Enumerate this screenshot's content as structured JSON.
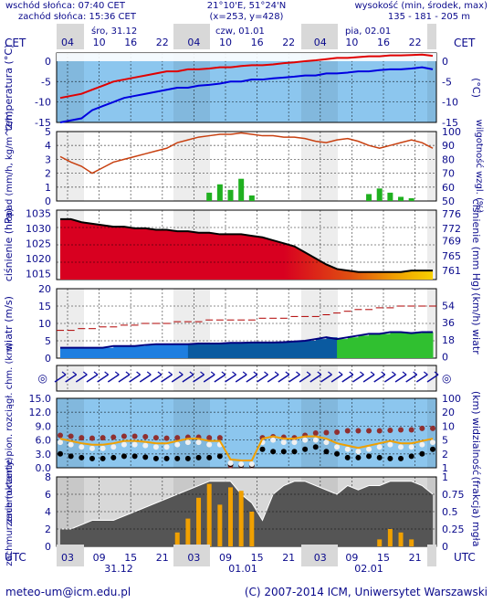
{
  "header": {
    "sunrise": "wschód słońca: 07:40 CET",
    "sunset": "zachód słońca: 15:36 CET",
    "coords": "21°10'E, 51°24'N",
    "grid": "(x=253, y=428)",
    "elev_label": "wysokość (min, środek, max)",
    "elev_values": "135 - 181 - 205 m"
  },
  "top_axis": {
    "tz": "CET",
    "hours": [
      "04",
      "10",
      "16",
      "22",
      "04",
      "10",
      "16",
      "22",
      "04",
      "10",
      "16",
      "22"
    ],
    "days": [
      "śro, 31.12",
      "czw, 01.01",
      "pia, 02.01"
    ]
  },
  "bottom_axis": {
    "tz": "UTC",
    "hours": [
      "03",
      "09",
      "15",
      "21",
      "03",
      "09",
      "15",
      "21",
      "03",
      "09",
      "15",
      "21"
    ],
    "dates": [
      "31.12",
      "01.01",
      "02.01"
    ]
  },
  "footer": {
    "email": "meteo-um@icm.edu.pl",
    "copyright": "(C) 2007-2014 ICM, Uniwersytet Warszawski"
  },
  "colors": {
    "label": "#0a0a8c",
    "panel_bg": "#8cc6ee",
    "night": "#d8d8d8",
    "temp": "#e00000",
    "dew": "#0000e0",
    "rh": "#c84010",
    "pressure": "#000000",
    "fog": "#f0a000"
  },
  "chart_data": [
    {
      "type": "line",
      "panel": "temperature",
      "ylabel_left": "temperatura (°C)",
      "ylabel_right": "(°C)",
      "ylim": [
        -15,
        2
      ],
      "yticks": [
        0,
        -5,
        -10,
        -15
      ],
      "series": [
        {
          "values": [
            -9,
            -8.5,
            -8,
            -7,
            -6,
            -5,
            -4.5,
            -4,
            -3.5,
            -3,
            -2.5,
            -2.5,
            -2,
            -2,
            -1.8,
            -1.5,
            -1.5,
            -1.2,
            -1,
            -1,
            -0.8,
            -0.5,
            -0.3,
            0,
            0.2,
            0.5,
            0.8,
            0.8,
            1,
            1.2,
            1.2,
            1.4,
            1.4,
            1.5,
            1.6,
            1.3
          ]
        },
        {
          "values": [
            -15,
            -14.5,
            -14,
            -12,
            -11,
            -10,
            -9,
            -8.5,
            -8,
            -7.5,
            -7,
            -6.5,
            -6.5,
            -6,
            -5.8,
            -5.5,
            -5,
            -5,
            -4.5,
            -4.5,
            -4.2,
            -4,
            -3.8,
            -3.5,
            -3.5,
            -3,
            -3,
            -2.8,
            -2.5,
            -2.5,
            -2.2,
            -2,
            -2,
            -1.8,
            -1.5,
            -2
          ]
        }
      ]
    },
    {
      "type": "line",
      "panel": "precipitation_humidity",
      "ylabel_left": "opad (mm/h, kg/m^2/h)",
      "ylabel_right": "wilgotność wzgl. (%)",
      "ylim_left": [
        0,
        5
      ],
      "ylim_right": [
        50,
        100
      ],
      "yticks_left": [
        0,
        1,
        2,
        3,
        4,
        5
      ],
      "yticks_right": [
        50,
        60,
        70,
        80,
        90,
        100
      ],
      "series": [
        {
          "values": [
            82,
            78,
            75,
            70,
            74,
            78,
            80,
            82,
            84,
            86,
            88,
            92,
            94,
            96,
            97,
            98,
            98,
            99,
            98,
            97,
            97,
            96,
            96,
            95,
            93,
            92,
            94,
            95,
            93,
            90,
            88,
            90,
            92,
            94,
            92,
            88
          ]
        },
        {
          "values": [
            0,
            0,
            0,
            0,
            0,
            0,
            0,
            0,
            0,
            0,
            0,
            0,
            0,
            0,
            0.6,
            1.2,
            0.8,
            1.6,
            0.4,
            0,
            0,
            0,
            0,
            0,
            0,
            0,
            0,
            0,
            0,
            0.5,
            0.9,
            0.6,
            0.3,
            0.2,
            0,
            0
          ]
        }
      ]
    },
    {
      "type": "area",
      "panel": "pressure",
      "ylabel_left": "ciśnienie (hPa)",
      "ylabel_right": "ciśnienie (mm Hg)",
      "ylim": [
        1013,
        1036
      ],
      "yticks_left": [
        1035,
        1030,
        1025,
        1020,
        1015
      ],
      "yticks_right": [
        776,
        772,
        769,
        765,
        761
      ],
      "series": [
        {
          "values": [
            1033,
            1033,
            1032,
            1031.5,
            1031,
            1030.5,
            1030.5,
            1030,
            1030,
            1029.5,
            1029.5,
            1029,
            1029,
            1028.5,
            1028.5,
            1028,
            1028,
            1028,
            1027.5,
            1027,
            1026,
            1025,
            1024,
            1022,
            1020,
            1018,
            1016.5,
            1016,
            1015.5,
            1015.5,
            1015.5,
            1015.5,
            1015.5,
            1016,
            1016,
            1016
          ]
        }
      ]
    },
    {
      "type": "area",
      "panel": "wind",
      "ylabel_left": "wiatr (m/s)",
      "ylabel_right": "(km/h) wiatr",
      "ylim": [
        0,
        20
      ],
      "yticks_left": [
        0,
        5,
        10,
        15,
        20
      ],
      "yticks_right": [
        0,
        18,
        36,
        54
      ],
      "series": [
        {
          "values": [
            3,
            3,
            3,
            3,
            3,
            3.5,
            3.5,
            3.5,
            3.8,
            4,
            4,
            4,
            4,
            4.2,
            4.2,
            4.2,
            4.4,
            4.4,
            4.5,
            4.5,
            4.5,
            4.6,
            4.8,
            5,
            5.5,
            6,
            5.5,
            6,
            6.5,
            7,
            7,
            7.5,
            7.5,
            7.2,
            7.5,
            7.5
          ]
        },
        {
          "values": [
            8,
            8,
            8.5,
            8.5,
            9,
            9,
            9.5,
            9.5,
            10,
            10,
            10,
            10.5,
            10.5,
            10.5,
            11,
            11,
            11,
            11,
            11,
            11.5,
            11.5,
            11.5,
            12,
            12,
            12,
            12.5,
            13,
            13.5,
            14,
            14,
            14.5,
            14.5,
            15,
            15,
            15,
            15
          ]
        }
      ]
    },
    {
      "type": "scatter",
      "panel": "visibility",
      "ylabel_left": "zachmurzenie pion. rozciągł. chm. (km)",
      "ylabel_right": "(km) widzialność",
      "ylim_left": [
        0,
        15
      ],
      "ylim_right": [
        0,
        100
      ],
      "yticks_left": [
        "15.0",
        "12.0",
        "9.0",
        "6.0",
        "3.0",
        "0.0"
      ],
      "yticks_right": [
        100,
        20,
        10,
        5,
        2,
        1
      ],
      "series": [
        {
          "values": [
            7,
            6.8,
            6.5,
            6.4,
            6.5,
            6.6,
            6.8,
            6.8,
            6.7,
            6.5,
            6.4,
            6.5,
            6.6,
            6.6,
            6.5,
            6.5,
            0.5,
            0.5,
            0.5,
            6.5,
            6.7,
            6.6,
            6.5,
            7,
            7.5,
            7.6,
            7.7,
            8,
            8,
            8,
            8,
            8.1,
            8.2,
            8.2,
            8.5,
            8.5
          ]
        },
        {
          "values": [
            3,
            2.5,
            2.2,
            2,
            2,
            2.2,
            2.5,
            2.5,
            2.3,
            2,
            2,
            2,
            2,
            2.2,
            2.2,
            2.5,
            0.8,
            0.6,
            0.6,
            4,
            3.5,
            3.5,
            3.5,
            4,
            4.5,
            3.5,
            3,
            2.2,
            2.2,
            2.5,
            2.2,
            2,
            2,
            2.5,
            3,
            4
          ]
        },
        {
          "values": [
            5.5,
            5,
            4.5,
            4.2,
            4.2,
            4.5,
            5,
            5,
            4.8,
            4.5,
            4.5,
            5,
            5.5,
            5.5,
            5,
            5,
            1,
            0.8,
            0.8,
            5.5,
            6,
            5.5,
            5.5,
            6,
            6,
            5.5,
            4.5,
            4,
            3.5,
            4,
            4.5,
            5,
            4.5,
            4.5,
            5,
            5.5
          ]
        }
      ]
    },
    {
      "type": "bar",
      "panel": "cloud_fog",
      "ylabel_left": "zachmurzenie (oktanty)",
      "ylabel_right": "(frakcja) mgła",
      "ylim_left": [
        0,
        8
      ],
      "ylim_right": [
        0,
        1
      ],
      "yticks_left": [
        0,
        2,
        4,
        6,
        8
      ],
      "yticks_right": [
        "0",
        "0.25",
        "0.5",
        "0.75",
        "1"
      ],
      "series": [
        {
          "values": [
            0,
            0,
            0,
            0,
            0,
            0,
            0,
            0,
            0,
            0,
            0,
            0.2,
            0.4,
            0.7,
            0.9,
            0.6,
            0.85,
            0.8,
            0.5,
            0,
            0,
            0,
            0,
            0,
            0,
            0,
            0,
            0,
            0,
            0,
            0.1,
            0.25,
            0.2,
            0.1,
            0,
            0
          ]
        },
        {
          "values": [
            2,
            2,
            2.5,
            3,
            3,
            3,
            3.5,
            4,
            4.5,
            5,
            5.5,
            6,
            6.5,
            7,
            7.5,
            7.5,
            7.5,
            6,
            5,
            3,
            6,
            7,
            7.5,
            7.5,
            7,
            6.5,
            6,
            7,
            6.5,
            7,
            7,
            7.5,
            7.5,
            7.5,
            7,
            6
          ]
        }
      ]
    }
  ]
}
